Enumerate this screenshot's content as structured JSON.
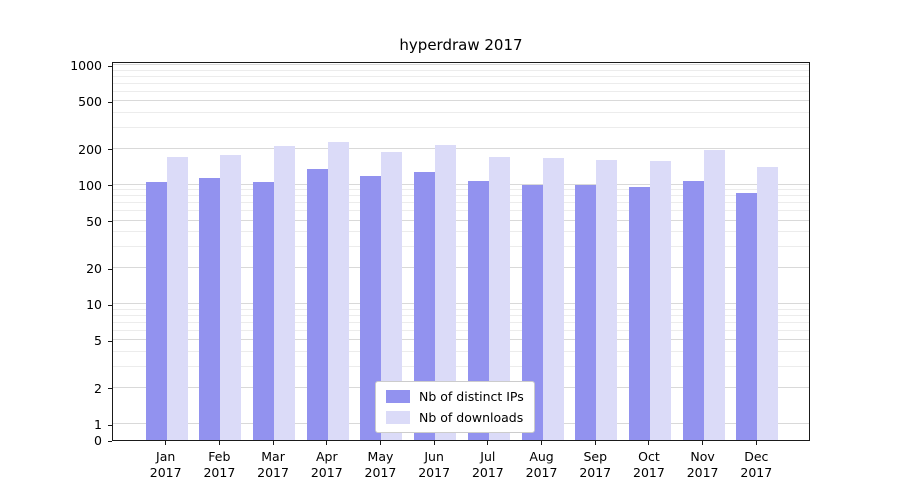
{
  "title": "hyperdraw 2017",
  "chart_data": {
    "type": "bar",
    "title": "hyperdraw 2017",
    "yscale": "symlog",
    "grid": true,
    "xlabel": "",
    "ylabel": "",
    "ylim": [
      0,
      1100
    ],
    "y_ticks": [
      0,
      1,
      2,
      5,
      10,
      20,
      50,
      100,
      200,
      500,
      1000
    ],
    "categories": [
      "Jan 2017",
      "Feb 2017",
      "Mar 2017",
      "Apr 2017",
      "May 2017",
      "Jun 2017",
      "Jul 2017",
      "Aug 2017",
      "Sep 2017",
      "Oct 2017",
      "Nov 2017",
      "Dec 2017"
    ],
    "series": [
      {
        "name": "Nb of distinct IPs",
        "color": "#9292ef",
        "values": [
          105,
          113,
          106,
          136,
          119,
          128,
          108,
          100,
          100,
          95,
          108,
          85
        ]
      },
      {
        "name": "Nb of downloads",
        "color": "#dbdbf8",
        "values": [
          172,
          178,
          212,
          228,
          188,
          216,
          171,
          168,
          162,
          158,
          196,
          141
        ]
      }
    ],
    "legend_position": "lower center"
  },
  "colors": {
    "background": "#ffffff",
    "axis": "#1a1a1a",
    "grid_major": "#d9d9d9",
    "grid_minor": "#ececec",
    "legend_border": "#cccccc"
  }
}
